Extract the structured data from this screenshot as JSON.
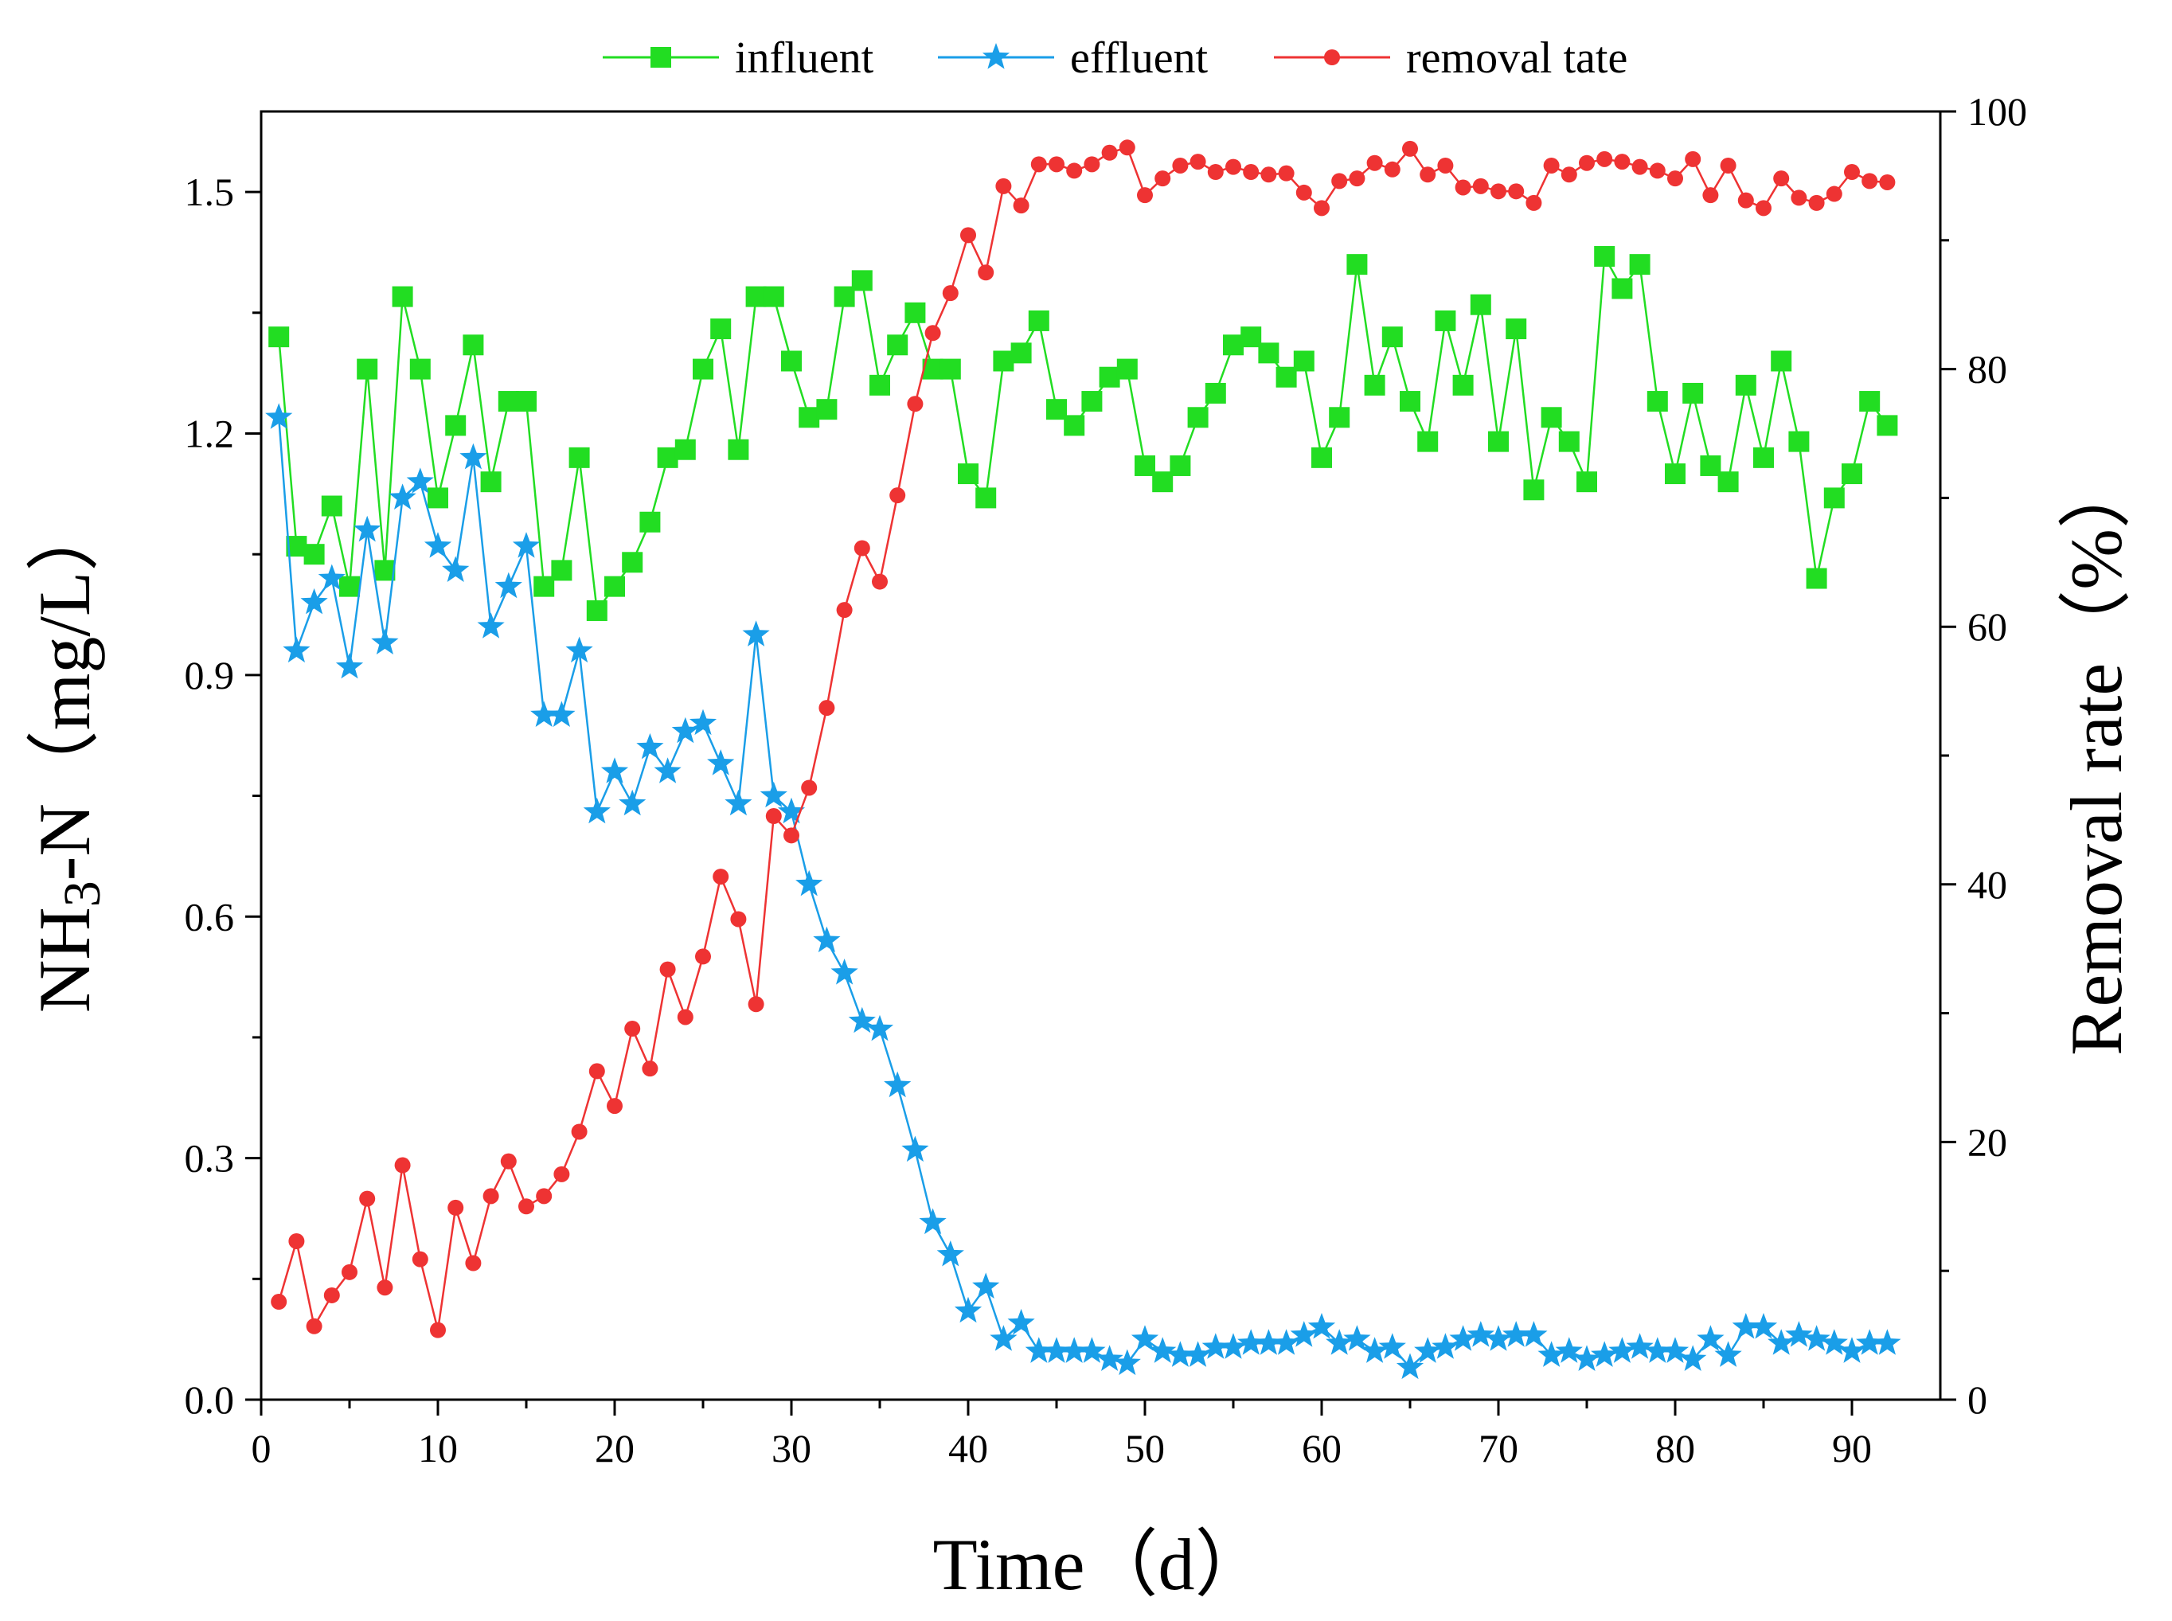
{
  "chart_data": {
    "type": "line",
    "xlabel": "Time（d）",
    "ylabel_left": "NH3-N（mg/L）",
    "ylabel_left_parts": {
      "pre": "NH",
      "sub": "3",
      "post": "-N（mg/L）"
    },
    "ylabel_right": "Removal rate（%）",
    "xlim": [
      0,
      95
    ],
    "ylim_left": [
      0,
      1.6
    ],
    "ylim_right": [
      0,
      100
    ],
    "x_ticks": [
      0,
      10,
      20,
      30,
      40,
      50,
      60,
      70,
      80,
      90
    ],
    "y_left_ticks": [
      "0.0",
      "0.3",
      "0.6",
      "0.9",
      "1.2",
      "1.5"
    ],
    "y_right_ticks": [
      "0",
      "20",
      "40",
      "60",
      "80",
      "100"
    ],
    "legend_position": "top",
    "x": [
      1,
      2,
      3,
      4,
      5,
      6,
      7,
      8,
      9,
      10,
      11,
      12,
      13,
      14,
      15,
      16,
      17,
      18,
      19,
      20,
      21,
      22,
      23,
      24,
      25,
      26,
      27,
      28,
      29,
      30,
      31,
      32,
      33,
      34,
      35,
      36,
      37,
      38,
      39,
      40,
      41,
      42,
      43,
      44,
      45,
      46,
      47,
      48,
      49,
      50,
      51,
      52,
      53,
      54,
      55,
      56,
      57,
      58,
      59,
      60,
      61,
      62,
      63,
      64,
      65,
      66,
      67,
      68,
      69,
      70,
      71,
      72,
      73,
      74,
      75,
      76,
      77,
      78,
      79,
      80,
      81,
      82,
      83,
      84,
      85,
      86,
      87,
      88,
      89,
      90,
      91,
      92
    ],
    "series": [
      {
        "name": "influent",
        "axis": "left",
        "color": "#22dd22",
        "marker": "square",
        "values": [
          1.32,
          1.06,
          1.05,
          1.11,
          1.01,
          1.28,
          1.03,
          1.37,
          1.28,
          1.12,
          1.21,
          1.31,
          1.14,
          1.24,
          1.24,
          1.01,
          1.03,
          1.17,
          0.98,
          1.01,
          1.04,
          1.09,
          1.17,
          1.18,
          1.28,
          1.33,
          1.18,
          1.37,
          1.37,
          1.29,
          1.22,
          1.23,
          1.37,
          1.39,
          1.26,
          1.31,
          1.35,
          1.28,
          1.28,
          1.15,
          1.12,
          1.29,
          1.3,
          1.34,
          1.23,
          1.21,
          1.24,
          1.27,
          1.28,
          1.16,
          1.14,
          1.16,
          1.22,
          1.25,
          1.31,
          1.32,
          1.3,
          1.27,
          1.29,
          1.17,
          1.22,
          1.41,
          1.26,
          1.32,
          1.24,
          1.19,
          1.34,
          1.26,
          1.36,
          1.19,
          1.33,
          1.13,
          1.22,
          1.19,
          1.14,
          1.42,
          1.38,
          1.41,
          1.24,
          1.15,
          1.25,
          1.16,
          1.14,
          1.26,
          1.17,
          1.29,
          1.19,
          1.02,
          1.12,
          1.15,
          1.24,
          1.21
        ]
      },
      {
        "name": "effluent",
        "axis": "left",
        "color": "#1a9ee8",
        "marker": "star",
        "values": [
          1.22,
          0.93,
          0.99,
          1.02,
          0.91,
          1.08,
          0.94,
          1.12,
          1.14,
          1.06,
          1.03,
          1.17,
          0.96,
          1.01,
          1.06,
          0.85,
          0.85,
          0.93,
          0.73,
          0.78,
          0.74,
          0.81,
          0.78,
          0.83,
          0.84,
          0.79,
          0.74,
          0.95,
          0.75,
          0.73,
          0.64,
          0.57,
          0.53,
          0.47,
          0.46,
          0.39,
          0.31,
          0.22,
          0.18,
          0.11,
          0.14,
          0.075,
          0.095,
          0.06,
          0.06,
          0.06,
          0.06,
          0.05,
          0.045,
          0.075,
          0.06,
          0.055,
          0.055,
          0.065,
          0.065,
          0.07,
          0.07,
          0.07,
          0.08,
          0.09,
          0.07,
          0.075,
          0.06,
          0.065,
          0.04,
          0.06,
          0.065,
          0.075,
          0.08,
          0.075,
          0.08,
          0.08,
          0.055,
          0.06,
          0.05,
          0.055,
          0.06,
          0.065,
          0.06,
          0.06,
          0.05,
          0.075,
          0.055,
          0.09,
          0.09,
          0.07,
          0.08,
          0.075,
          0.07,
          0.06,
          0.07,
          0.07
        ]
      },
      {
        "name": "removal tate",
        "axis": "right",
        "color": "#ee3333",
        "marker": "circle",
        "values": [
          7.6,
          12.3,
          5.7,
          8.1,
          9.9,
          15.6,
          8.7,
          18.2,
          10.9,
          5.4,
          14.9,
          10.6,
          15.8,
          18.5,
          15,
          15.8,
          17.5,
          20.8,
          25.5,
          22.8,
          28.8,
          25.7,
          33.4,
          29.7,
          34.4,
          40.6,
          37.3,
          30.7,
          45.3,
          43.8,
          47.5,
          53.7,
          61.3,
          66.1,
          63.5,
          70.2,
          77.3,
          82.8,
          85.9,
          90.4,
          87.5,
          94.2,
          92.7,
          95.9,
          95.9,
          95.4,
          95.9,
          96.8,
          97.2,
          93.5,
          94.8,
          95.8,
          96.1,
          95.3,
          95.7,
          95.3,
          95.1,
          95.2,
          93.7,
          92.5,
          94.6,
          94.8,
          96,
          95.5,
          97.1,
          95.1,
          95.8,
          94.1,
          94.2,
          93.8,
          93.8,
          92.9,
          95.8,
          95.1,
          96,
          96.3,
          96.1,
          95.7,
          95.4,
          94.8,
          96.3,
          93.5,
          95.8,
          93.1,
          92.5,
          94.8,
          93.3,
          92.9,
          93.6,
          95.3,
          94.6,
          94.5
        ]
      }
    ]
  }
}
